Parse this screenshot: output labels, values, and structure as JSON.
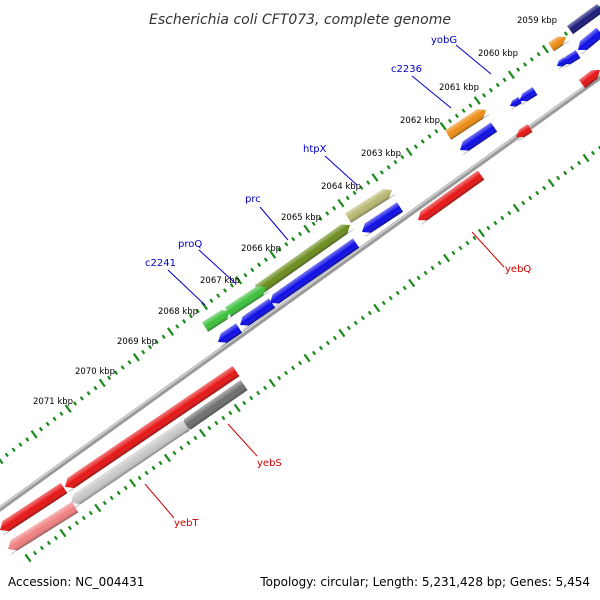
{
  "title": "Escherichia coli CFT073, complete genome",
  "footer": {
    "accession": "Accession: NC_004431",
    "summary": "Topology: circular; Length: 5,231,428 bp; Genes: 5,454"
  },
  "colors": {
    "forward_label": "#0000c8",
    "reverse_label": "#cc0000",
    "tick_green": "#1a8a1a",
    "backbone": "#8c8c8c"
  },
  "ticks": [
    {
      "label": "2059 kbp"
    },
    {
      "label": "2060 kbp"
    },
    {
      "label": "2061 kbp"
    },
    {
      "label": "2062 kbp"
    },
    {
      "label": "2063 kbp"
    },
    {
      "label": "2064 kbp"
    },
    {
      "label": "2065 kbp"
    },
    {
      "label": "2066 kbp"
    },
    {
      "label": "2067 kbp"
    },
    {
      "label": "2068 kbp"
    },
    {
      "label": "2069 kbp"
    },
    {
      "label": "2070 kbp"
    },
    {
      "label": "2071 kbp"
    }
  ],
  "forward_labels": [
    {
      "name": "yobG"
    },
    {
      "name": "c2236"
    },
    {
      "name": "htpX"
    },
    {
      "name": "prc"
    },
    {
      "name": "proQ"
    },
    {
      "name": "c2241"
    }
  ],
  "reverse_labels": [
    {
      "name": "yebQ"
    },
    {
      "name": "yebS"
    },
    {
      "name": "yebT"
    }
  ],
  "gene_colors": {
    "navy": "#1a1a7a",
    "orange": "#ee8c14",
    "olive_light": "#b8b872",
    "olive": "#6b8c1c",
    "green": "#3cc03c",
    "blue": "#0c0ce6",
    "red": "#e61414",
    "pink": "#f08080",
    "gray_dark": "#6e6e6e",
    "gray_light": "#c8c8c8"
  }
}
